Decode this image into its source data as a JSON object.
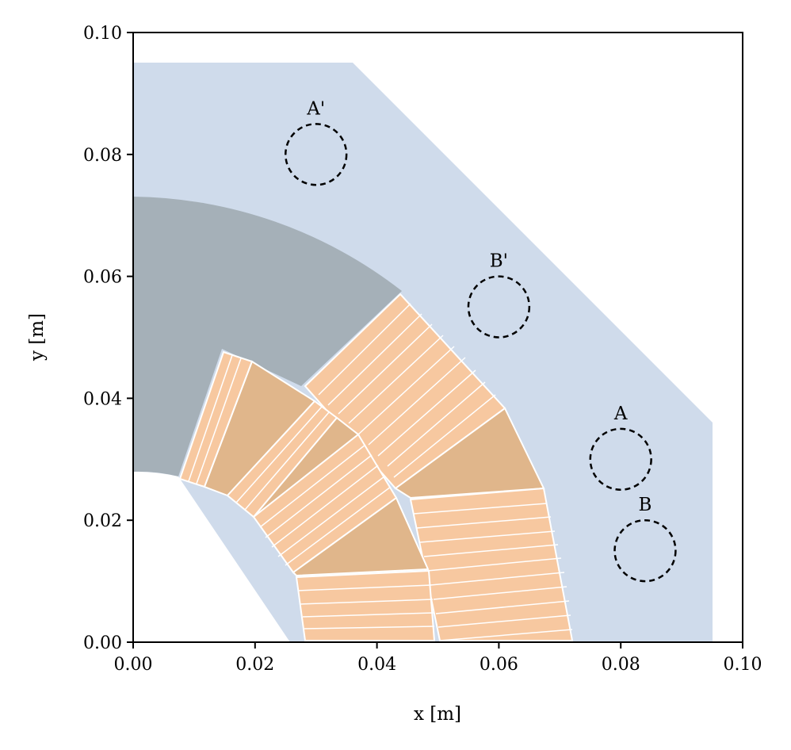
{
  "chart_data": {
    "type": "diagram",
    "xlabel": "x [m]",
    "ylabel": "y [m]",
    "xlim": [
      0.0,
      0.1
    ],
    "ylim": [
      0.0,
      0.1
    ],
    "x_ticks": [
      "0.00",
      "0.02",
      "0.04",
      "0.06",
      "0.08",
      "0.10"
    ],
    "y_ticks": [
      "0.00",
      "0.02",
      "0.04",
      "0.06",
      "0.08",
      "0.10"
    ],
    "colors": {
      "iron_yoke": "#cfdbeb",
      "collar": "#a5b0b8",
      "conductor": "#f7c8a0",
      "wedge": "#e0b68b",
      "probe_circle": "#000000"
    },
    "probes": [
      {
        "label": "A'",
        "x": 0.03,
        "y": 0.08,
        "r": 0.005
      },
      {
        "label": "B'",
        "x": 0.06,
        "y": 0.055,
        "r": 0.005
      },
      {
        "label": "A",
        "x": 0.08,
        "y": 0.03,
        "r": 0.005
      },
      {
        "label": "B",
        "x": 0.084,
        "y": 0.015,
        "r": 0.005
      }
    ]
  }
}
